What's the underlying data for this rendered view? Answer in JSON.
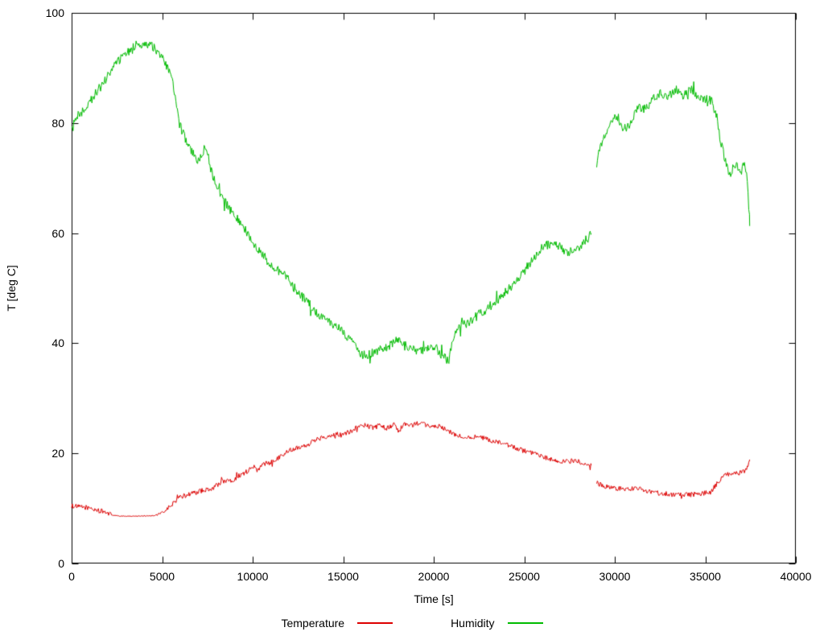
{
  "chart_data": {
    "type": "line",
    "title": "",
    "xlabel": "Time [s]",
    "ylabel": "T [deg C]",
    "xlim": [
      0,
      40000
    ],
    "ylim": [
      0,
      100
    ],
    "x_ticks": [
      0,
      5000,
      10000,
      15000,
      20000,
      25000,
      30000,
      35000,
      40000
    ],
    "y_ticks": [
      0,
      20,
      40,
      60,
      80,
      100
    ],
    "grid": false,
    "legend_position": "bottom-center",
    "background": "#ffffff",
    "frame_color": "#000000",
    "series": [
      {
        "name": "Temperature",
        "color": "#dd0000",
        "noise": 0.45,
        "segments": [
          [
            [
              0,
              10.5
            ],
            [
              300,
              10.3
            ],
            [
              800,
              10.2
            ],
            [
              1500,
              9.6
            ],
            [
              2000,
              9.2
            ],
            [
              2300,
              8.8,
              0.4
            ],
            [
              2600,
              8.6,
              0.15
            ],
            [
              3500,
              8.6,
              0.12
            ],
            [
              4600,
              8.7,
              0.2
            ],
            [
              5000,
              9.2,
              0.6
            ],
            [
              5400,
              10.2
            ],
            [
              5700,
              11.3
            ],
            [
              6000,
              12.0
            ],
            [
              6300,
              12.4
            ],
            [
              6700,
              12.8
            ],
            [
              7000,
              13.0
            ],
            [
              7300,
              13.4
            ],
            [
              7600,
              13.3
            ],
            [
              8000,
              14.2
            ],
            [
              8300,
              14.8
            ],
            [
              8600,
              15.2
            ],
            [
              8900,
              15.0
            ],
            [
              9200,
              15.9
            ],
            [
              9500,
              16.3
            ],
            [
              9800,
              17.0
            ],
            [
              10000,
              17.3
            ],
            [
              10300,
              17.0
            ],
            [
              10600,
              18.0
            ],
            [
              11000,
              18.4
            ],
            [
              11400,
              19.2
            ],
            [
              11800,
              20.1
            ],
            [
              12200,
              20.8
            ],
            [
              12600,
              21.2
            ],
            [
              13000,
              21.6
            ],
            [
              13400,
              22.3
            ],
            [
              13800,
              22.9
            ],
            [
              14200,
              23.2
            ],
            [
              14600,
              23.4
            ],
            [
              15000,
              23.6
            ],
            [
              15400,
              24.0
            ],
            [
              15800,
              24.8
            ],
            [
              16200,
              25.2
            ],
            [
              16600,
              24.7
            ],
            [
              17000,
              25.0
            ],
            [
              17400,
              24.6
            ],
            [
              17800,
              25.2
            ],
            [
              18100,
              23.8
            ],
            [
              18400,
              25.3
            ],
            [
              18800,
              25.1
            ],
            [
              19200,
              25.6
            ],
            [
              19600,
              25.0
            ],
            [
              20000,
              25.1
            ],
            [
              20400,
              24.8
            ],
            [
              20800,
              24.0
            ],
            [
              21200,
              23.4
            ],
            [
              21600,
              23.0
            ],
            [
              22000,
              23.1
            ],
            [
              22400,
              23.0
            ],
            [
              22800,
              22.7
            ],
            [
              23200,
              22.3
            ],
            [
              23600,
              21.9
            ],
            [
              24000,
              21.6
            ],
            [
              24400,
              21.1
            ],
            [
              24800,
              20.7
            ],
            [
              25200,
              20.2
            ],
            [
              25600,
              19.8
            ],
            [
              26000,
              19.4
            ],
            [
              26400,
              19.0
            ],
            [
              26800,
              18.6
            ],
            [
              27200,
              18.5
            ],
            [
              27600,
              18.6
            ],
            [
              28000,
              18.5
            ],
            [
              28400,
              18.2
            ],
            [
              28700,
              17.7
            ]
          ],
          [
            [
              29000,
              14.6
            ],
            [
              29400,
              14.1
            ],
            [
              29800,
              13.8
            ],
            [
              30200,
              13.6
            ],
            [
              30600,
              13.5
            ],
            [
              31000,
              13.6
            ],
            [
              31400,
              13.5
            ],
            [
              31800,
              13.2
            ],
            [
              32200,
              12.9
            ],
            [
              32600,
              12.7
            ],
            [
              33000,
              12.6
            ],
            [
              33400,
              12.5
            ],
            [
              33800,
              12.5
            ],
            [
              34200,
              12.5
            ],
            [
              34600,
              12.6
            ],
            [
              35000,
              12.8
            ],
            [
              35300,
              13.0
            ],
            [
              35600,
              14.3
            ],
            [
              35900,
              15.6
            ],
            [
              36200,
              16.2
            ],
            [
              36500,
              16.4
            ],
            [
              36800,
              16.3
            ],
            [
              37100,
              16.6
            ],
            [
              37300,
              17.2
            ],
            [
              37400,
              18.0
            ],
            [
              37450,
              19.0
            ]
          ]
        ]
      },
      {
        "name": "Humidity",
        "color": "#00bb00",
        "noise": 0.85,
        "segments": [
          [
            [
              0,
              78.5
            ],
            [
              200,
              80.5
            ],
            [
              400,
              81.5
            ],
            [
              700,
              82.5
            ],
            [
              1000,
              83.5
            ],
            [
              1300,
              85.5
            ],
            [
              1600,
              86.5
            ],
            [
              1900,
              88.0
            ],
            [
              2200,
              89.5
            ],
            [
              2500,
              91.0
            ],
            [
              2800,
              92.0
            ],
            [
              3100,
              93.0
            ],
            [
              3400,
              93.8
            ],
            [
              3700,
              94.3
            ],
            [
              4000,
              94.5
            ],
            [
              4300,
              94.4
            ],
            [
              4600,
              93.6
            ],
            [
              4900,
              92.3
            ],
            [
              5200,
              90.5
            ],
            [
              5500,
              88.5
            ],
            [
              5700,
              85.0
            ],
            [
              5900,
              80.5
            ],
            [
              6100,
              78.5
            ],
            [
              6400,
              76.5
            ],
            [
              6700,
              74.5
            ],
            [
              7000,
              73.0
            ],
            [
              7200,
              74.0
            ],
            [
              7350,
              76.5
            ],
            [
              7500,
              74.5
            ],
            [
              7700,
              71.5
            ],
            [
              8000,
              68.5
            ],
            [
              8300,
              66.5
            ],
            [
              8600,
              65.0
            ],
            [
              8900,
              63.5
            ],
            [
              9200,
              62.5
            ],
            [
              9500,
              61.0
            ],
            [
              9800,
              59.5
            ],
            [
              10100,
              58.0
            ],
            [
              10400,
              56.5
            ],
            [
              10700,
              55.5
            ],
            [
              11000,
              54.0
            ],
            [
              11300,
              53.3
            ],
            [
              11600,
              53.0
            ],
            [
              11900,
              52.0
            ],
            [
              12200,
              50.5
            ],
            [
              12500,
              49.3
            ],
            [
              12800,
              48.2
            ],
            [
              13100,
              47.2
            ],
            [
              13400,
              46.0
            ],
            [
              13700,
              45.2
            ],
            [
              14000,
              44.5
            ],
            [
              14300,
              43.6
            ],
            [
              14600,
              43.0
            ],
            [
              14900,
              42.4
            ],
            [
              15200,
              41.0
            ],
            [
              15500,
              40.0
            ],
            [
              15800,
              39.2
            ],
            [
              16000,
              38.0
            ],
            [
              16300,
              37.8
            ],
            [
              16600,
              38.2
            ],
            [
              16900,
              38.5
            ],
            [
              17200,
              39.0
            ],
            [
              17500,
              39.5
            ],
            [
              17800,
              40.2
            ],
            [
              18000,
              41.0
            ],
            [
              18200,
              39.8
            ],
            [
              18500,
              39.4
            ],
            [
              18800,
              39.0
            ],
            [
              19100,
              38.8
            ],
            [
              19400,
              38.6
            ],
            [
              19700,
              39.2
            ],
            [
              20000,
              39.6
            ],
            [
              20300,
              38.4
            ],
            [
              20600,
              37.4
            ],
            [
              20800,
              37.0
            ],
            [
              20900,
              38.5
            ],
            [
              21100,
              41.5
            ],
            [
              21400,
              42.8
            ],
            [
              21700,
              43.4
            ],
            [
              22000,
              44.0
            ],
            [
              22300,
              44.8
            ],
            [
              22600,
              45.4
            ],
            [
              22900,
              46.2
            ],
            [
              23200,
              47.0
            ],
            [
              23500,
              47.8
            ],
            [
              23800,
              48.8
            ],
            [
              24100,
              49.8
            ],
            [
              24400,
              50.8
            ],
            [
              24700,
              51.8
            ],
            [
              25000,
              53.0
            ],
            [
              25300,
              54.5
            ],
            [
              25600,
              55.8
            ],
            [
              25900,
              57.0
            ],
            [
              26200,
              57.8
            ],
            [
              26500,
              58.2
            ],
            [
              26800,
              57.8
            ],
            [
              27100,
              57.2
            ],
            [
              27400,
              56.6
            ],
            [
              27700,
              56.8
            ],
            [
              28000,
              57.4
            ],
            [
              28300,
              58.4
            ],
            [
              28600,
              59.4
            ],
            [
              28700,
              60.0
            ]
          ],
          [
            [
              29000,
              72.5
            ],
            [
              29200,
              75.5
            ],
            [
              29400,
              77.5
            ],
            [
              29600,
              79.0
            ],
            [
              29800,
              80.5
            ],
            [
              30000,
              81.0
            ],
            [
              30200,
              80.8
            ],
            [
              30400,
              79.4
            ],
            [
              30600,
              79.0
            ],
            [
              30800,
              79.6
            ],
            [
              31000,
              81.0
            ],
            [
              31200,
              82.5
            ],
            [
              31400,
              83.0
            ],
            [
              31600,
              82.4
            ],
            [
              31800,
              82.8
            ],
            [
              32000,
              83.8
            ],
            [
              32200,
              84.6
            ],
            [
              32400,
              85.2
            ],
            [
              32600,
              85.4
            ],
            [
              32800,
              84.8
            ],
            [
              33000,
              84.9
            ],
            [
              33200,
              85.6
            ],
            [
              33400,
              86.0
            ],
            [
              33600,
              85.6
            ],
            [
              33800,
              85.2
            ],
            [
              34000,
              85.6
            ],
            [
              34200,
              86.0
            ],
            [
              34400,
              85.6
            ],
            [
              34600,
              84.8
            ],
            [
              34800,
              84.4
            ],
            [
              35000,
              84.2
            ],
            [
              35200,
              84.3
            ],
            [
              35400,
              83.8
            ],
            [
              35600,
              81.0
            ],
            [
              35800,
              77.5
            ],
            [
              36000,
              74.5
            ],
            [
              36200,
              72.0
            ],
            [
              36400,
              70.5
            ],
            [
              36600,
              72.5
            ],
            [
              36800,
              72.0
            ],
            [
              37000,
              71.0
            ],
            [
              37100,
              72.5
            ],
            [
              37200,
              72.0
            ],
            [
              37300,
              70.0
            ],
            [
              37400,
              65.0
            ],
            [
              37450,
              62.0
            ]
          ]
        ]
      }
    ]
  }
}
